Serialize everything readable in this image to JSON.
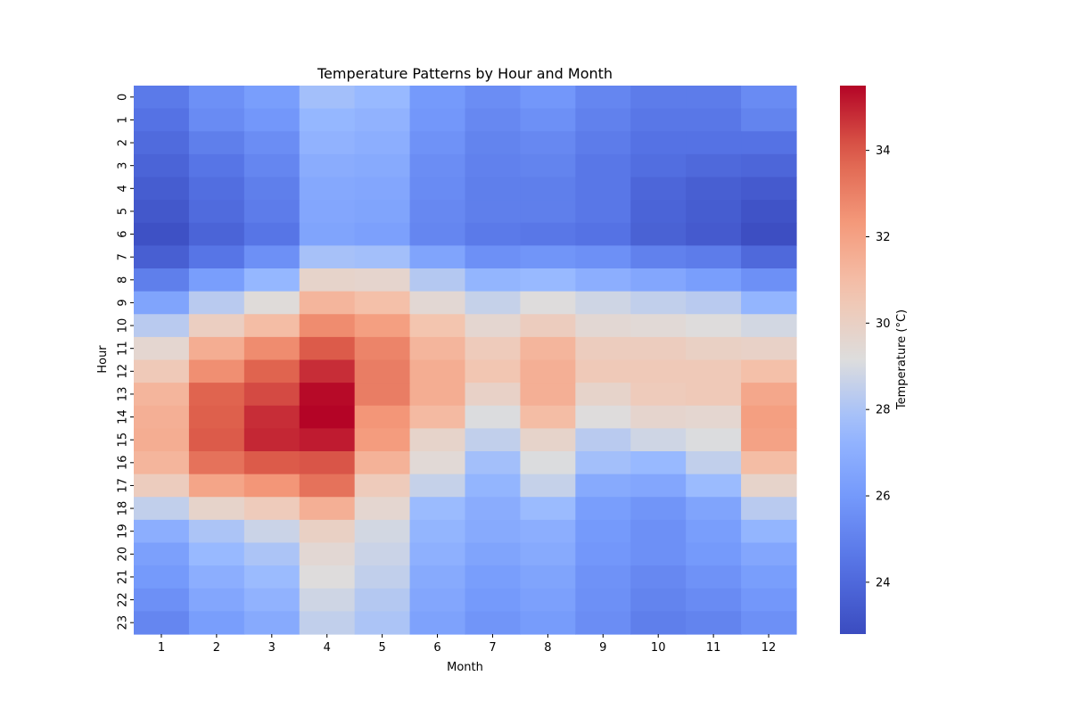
{
  "chart_data": {
    "type": "heatmap",
    "title": "Temperature Patterns by Hour and Month",
    "xlabel": "Month",
    "ylabel": "Hour",
    "x": [
      "1",
      "2",
      "3",
      "4",
      "5",
      "6",
      "7",
      "8",
      "9",
      "10",
      "11",
      "12"
    ],
    "y": [
      "0",
      "1",
      "2",
      "3",
      "4",
      "5",
      "6",
      "7",
      "8",
      "9",
      "10",
      "11",
      "12",
      "13",
      "14",
      "15",
      "16",
      "17",
      "18",
      "19",
      "20",
      "21",
      "22",
      "23"
    ],
    "colorbar": {
      "label": "Temperature (°C)",
      "vmin": 22.8,
      "vmax": 35.5,
      "ticks": [
        24,
        26,
        28,
        30,
        32,
        34
      ],
      "colormap": "coolwarm"
    },
    "values": [
      [
        24.7,
        25.6,
        26.2,
        27.8,
        27.5,
        26.0,
        25.5,
        25.9,
        25.2,
        24.8,
        24.8,
        25.4
      ],
      [
        24.4,
        25.4,
        25.9,
        27.4,
        27.2,
        25.9,
        25.3,
        25.6,
        25.0,
        24.6,
        24.6,
        25.1
      ],
      [
        24.1,
        24.9,
        25.5,
        27.2,
        27.0,
        25.7,
        25.1,
        25.3,
        24.8,
        24.4,
        24.4,
        24.4
      ],
      [
        23.8,
        24.5,
        25.2,
        26.9,
        26.8,
        25.5,
        25.0,
        25.1,
        24.6,
        24.2,
        24.0,
        23.9
      ],
      [
        23.5,
        24.2,
        24.9,
        26.7,
        26.6,
        25.4,
        24.9,
        24.9,
        24.6,
        23.9,
        23.6,
        23.4
      ],
      [
        23.3,
        24.1,
        24.8,
        26.6,
        26.5,
        25.3,
        24.9,
        24.9,
        24.6,
        23.8,
        23.5,
        23.1
      ],
      [
        23.0,
        23.8,
        24.5,
        26.5,
        26.3,
        25.2,
        24.7,
        24.6,
        24.4,
        23.7,
        23.4,
        22.9
      ],
      [
        23.6,
        24.5,
        25.6,
        27.9,
        27.8,
        26.5,
        25.6,
        25.8,
        25.6,
        25.0,
        24.8,
        24.0
      ],
      [
        24.9,
        26.2,
        27.4,
        29.8,
        29.7,
        28.2,
        27.3,
        27.5,
        27.0,
        26.6,
        26.2,
        25.6
      ],
      [
        26.5,
        28.3,
        29.3,
        31.3,
        30.9,
        29.5,
        28.6,
        29.2,
        28.8,
        28.5,
        28.3,
        27.3
      ],
      [
        28.3,
        30.1,
        31.0,
        32.7,
        32.1,
        30.7,
        29.6,
        30.2,
        29.5,
        29.4,
        29.2,
        28.9
      ],
      [
        29.6,
        31.6,
        32.7,
        34.0,
        32.9,
        31.3,
        30.3,
        31.3,
        30.2,
        30.2,
        30.0,
        29.9
      ],
      [
        30.4,
        32.6,
        33.8,
        34.8,
        33.1,
        31.6,
        30.6,
        31.5,
        30.4,
        30.4,
        30.4,
        30.9
      ],
      [
        31.3,
        33.8,
        34.3,
        35.4,
        33.1,
        31.6,
        29.9,
        31.5,
        29.8,
        30.3,
        30.4,
        31.8
      ],
      [
        31.5,
        33.9,
        34.8,
        35.5,
        32.4,
        31.1,
        29.1,
        31.0,
        29.2,
        29.7,
        29.6,
        32.1
      ],
      [
        31.6,
        34.0,
        34.9,
        35.1,
        32.2,
        29.8,
        28.5,
        29.8,
        28.3,
        28.8,
        29.1,
        32.0
      ],
      [
        31.3,
        33.4,
        34.0,
        34.1,
        31.4,
        29.4,
        27.8,
        29.1,
        27.8,
        27.5,
        28.5,
        31.0
      ],
      [
        30.2,
        31.9,
        32.4,
        33.4,
        30.3,
        28.6,
        27.3,
        28.6,
        26.8,
        26.6,
        27.6,
        29.8
      ],
      [
        28.5,
        29.8,
        30.3,
        31.5,
        29.6,
        27.6,
        26.9,
        27.6,
        26.2,
        25.8,
        26.5,
        28.3
      ],
      [
        27.0,
        28.0,
        28.7,
        30.0,
        28.9,
        27.3,
        26.8,
        27.0,
        26.0,
        25.6,
        26.2,
        27.3
      ],
      [
        26.3,
        27.5,
        28.0,
        29.5,
        28.7,
        27.1,
        26.5,
        26.8,
        25.9,
        25.6,
        26.0,
        26.6
      ],
      [
        26.0,
        27.0,
        27.6,
        29.2,
        28.5,
        26.8,
        26.2,
        26.5,
        25.7,
        25.3,
        25.7,
        26.2
      ],
      [
        25.6,
        26.6,
        27.2,
        28.8,
        28.2,
        26.6,
        26.0,
        26.3,
        25.6,
        25.1,
        25.4,
        25.9
      ],
      [
        25.2,
        26.2,
        26.8,
        28.5,
        28.0,
        26.4,
        25.8,
        26.1,
        25.5,
        24.9,
        25.1,
        25.6
      ]
    ]
  }
}
